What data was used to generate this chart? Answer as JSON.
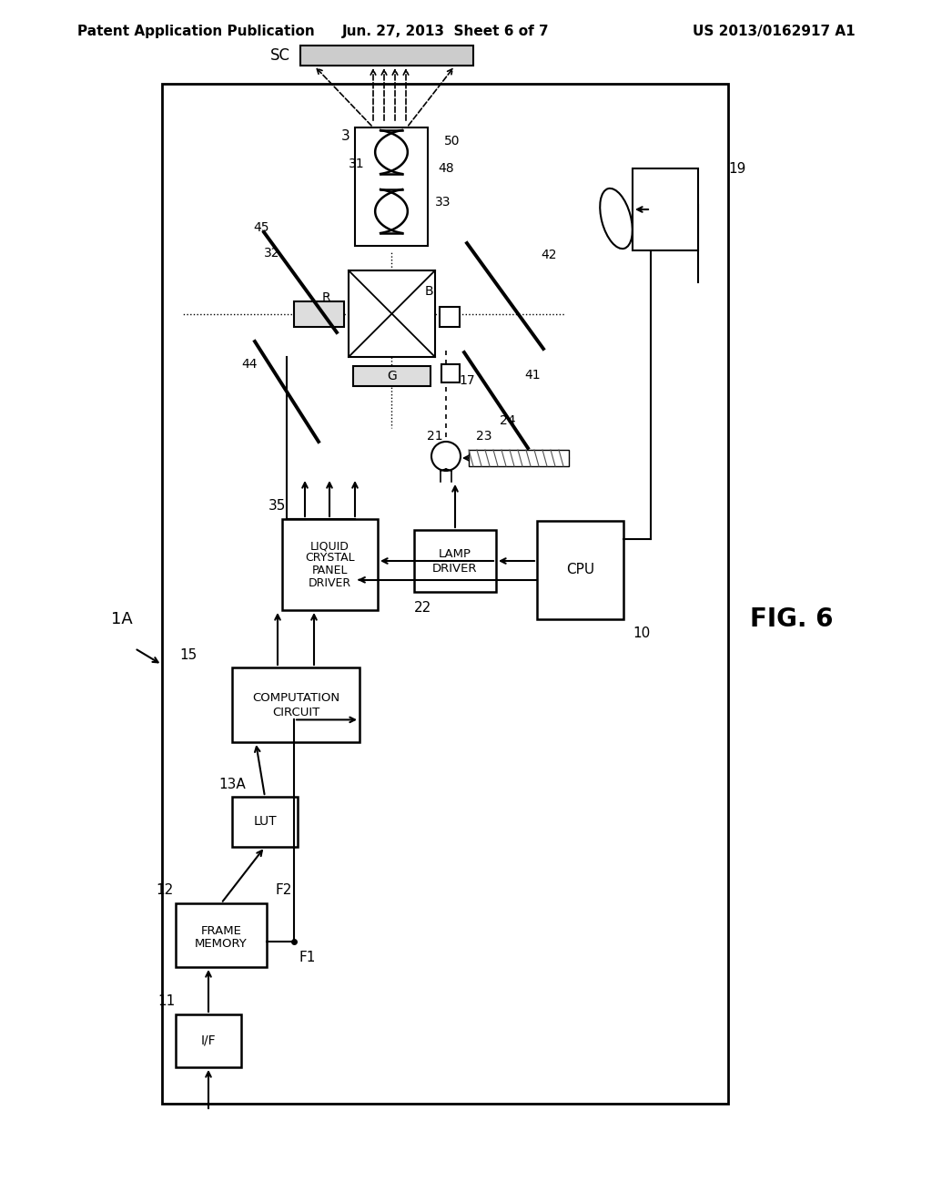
{
  "bg_color": "#ffffff",
  "header_left": "Patent Application Publication",
  "header_center": "Jun. 27, 2013  Sheet 6 of 7",
  "header_right": "US 2013/0162917 A1",
  "figure_label": "FIG. 6"
}
